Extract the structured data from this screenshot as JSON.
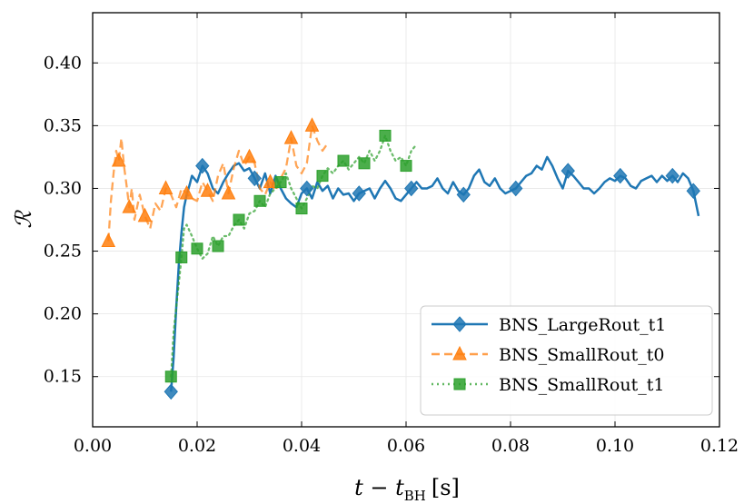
{
  "chart_data": {
    "type": "line",
    "xlabel": "t − t_BH [s]",
    "xlabel_main": "t − t",
    "xlabel_sub": "BH",
    "xlabel_unit": "[s]",
    "ylabel": "ℛ",
    "xlim": [
      0.0,
      0.12
    ],
    "ylim": [
      0.11,
      0.44
    ],
    "xticks": [
      0.0,
      0.02,
      0.04,
      0.06,
      0.08,
      0.1,
      0.12
    ],
    "xtick_labels": [
      "0.00",
      "0.02",
      "0.04",
      "0.06",
      "0.08",
      "0.10",
      "0.12"
    ],
    "yticks": [
      0.15,
      0.2,
      0.25,
      0.3,
      0.35,
      0.4
    ],
    "ytick_labels": [
      "0.15",
      "0.20",
      "0.25",
      "0.30",
      "0.35",
      "0.40"
    ],
    "grid": true,
    "legend_position": "bottom-right",
    "series": [
      {
        "name": "BNS_LargeRout_t1",
        "color": "#1f77b4",
        "linestyle": "solid",
        "marker": "diamond",
        "x": [
          0.015,
          0.0155,
          0.016,
          0.0165,
          0.017,
          0.0175,
          0.018,
          0.0185,
          0.019,
          0.02,
          0.021,
          0.022,
          0.023,
          0.024,
          0.025,
          0.026,
          0.027,
          0.028,
          0.029,
          0.03,
          0.031,
          0.032,
          0.033,
          0.034,
          0.035,
          0.036,
          0.037,
          0.038,
          0.039,
          0.04,
          0.041,
          0.042,
          0.043,
          0.044,
          0.045,
          0.046,
          0.047,
          0.048,
          0.049,
          0.05,
          0.051,
          0.052,
          0.053,
          0.054,
          0.055,
          0.056,
          0.057,
          0.058,
          0.059,
          0.06,
          0.061,
          0.062,
          0.063,
          0.064,
          0.065,
          0.066,
          0.067,
          0.068,
          0.069,
          0.07,
          0.071,
          0.072,
          0.073,
          0.074,
          0.075,
          0.076,
          0.077,
          0.078,
          0.079,
          0.08,
          0.081,
          0.082,
          0.083,
          0.084,
          0.085,
          0.086,
          0.087,
          0.088,
          0.089,
          0.09,
          0.091,
          0.092,
          0.093,
          0.094,
          0.095,
          0.096,
          0.097,
          0.098,
          0.099,
          0.1,
          0.101,
          0.102,
          0.103,
          0.104,
          0.105,
          0.106,
          0.107,
          0.108,
          0.109,
          0.11,
          0.111,
          0.112,
          0.113,
          0.114,
          0.115,
          0.116
        ],
        "y": [
          0.138,
          0.165,
          0.205,
          0.24,
          0.265,
          0.285,
          0.295,
          0.302,
          0.31,
          0.305,
          0.318,
          0.312,
          0.3,
          0.296,
          0.305,
          0.312,
          0.318,
          0.32,
          0.314,
          0.316,
          0.308,
          0.3,
          0.312,
          0.296,
          0.31,
          0.3,
          0.292,
          0.288,
          0.285,
          0.296,
          0.3,
          0.292,
          0.305,
          0.298,
          0.302,
          0.292,
          0.3,
          0.295,
          0.296,
          0.29,
          0.296,
          0.298,
          0.3,
          0.292,
          0.3,
          0.306,
          0.3,
          0.292,
          0.29,
          0.295,
          0.3,
          0.305,
          0.3,
          0.3,
          0.302,
          0.308,
          0.3,
          0.296,
          0.305,
          0.298,
          0.295,
          0.3,
          0.31,
          0.315,
          0.305,
          0.302,
          0.308,
          0.3,
          0.296,
          0.298,
          0.3,
          0.305,
          0.31,
          0.312,
          0.318,
          0.315,
          0.325,
          0.318,
          0.308,
          0.3,
          0.314,
          0.31,
          0.305,
          0.3,
          0.3,
          0.296,
          0.3,
          0.305,
          0.308,
          0.306,
          0.31,
          0.308,
          0.302,
          0.3,
          0.306,
          0.308,
          0.31,
          0.305,
          0.31,
          0.306,
          0.31,
          0.305,
          0.312,
          0.308,
          0.298,
          0.278
        ]
      },
      {
        "name": "BNS_SmallRout_t0",
        "color": "#ff7f0e",
        "linestyle": "dashed",
        "marker": "triangle",
        "x": [
          0.003,
          0.0035,
          0.004,
          0.0045,
          0.005,
          0.0055,
          0.006,
          0.0065,
          0.007,
          0.0075,
          0.008,
          0.009,
          0.01,
          0.011,
          0.012,
          0.013,
          0.014,
          0.015,
          0.016,
          0.017,
          0.018,
          0.019,
          0.02,
          0.021,
          0.022,
          0.023,
          0.024,
          0.025,
          0.026,
          0.027,
          0.028,
          0.029,
          0.03,
          0.031,
          0.032,
          0.033,
          0.034,
          0.035,
          0.036,
          0.037,
          0.038,
          0.039,
          0.04,
          0.041,
          0.042,
          0.043,
          0.044,
          0.045
        ],
        "y": [
          0.258,
          0.29,
          0.312,
          0.33,
          0.322,
          0.34,
          0.318,
          0.302,
          0.285,
          0.3,
          0.275,
          0.295,
          0.278,
          0.268,
          0.288,
          0.282,
          0.3,
          0.295,
          0.285,
          0.3,
          0.296,
          0.292,
          0.29,
          0.305,
          0.298,
          0.29,
          0.31,
          0.32,
          0.296,
          0.316,
          0.33,
          0.318,
          0.325,
          0.32,
          0.3,
          0.295,
          0.305,
          0.298,
          0.308,
          0.316,
          0.34,
          0.318,
          0.312,
          0.32,
          0.35,
          0.338,
          0.33,
          0.336
        ]
      },
      {
        "name": "BNS_SmallRout_t1",
        "color": "#2ca02c",
        "linestyle": "dotted",
        "marker": "square",
        "x": [
          0.015,
          0.0155,
          0.016,
          0.0165,
          0.017,
          0.0175,
          0.018,
          0.019,
          0.02,
          0.021,
          0.022,
          0.023,
          0.024,
          0.025,
          0.026,
          0.027,
          0.028,
          0.029,
          0.03,
          0.031,
          0.032,
          0.033,
          0.034,
          0.035,
          0.036,
          0.037,
          0.038,
          0.039,
          0.04,
          0.041,
          0.042,
          0.043,
          0.044,
          0.045,
          0.046,
          0.047,
          0.048,
          0.049,
          0.05,
          0.051,
          0.052,
          0.053,
          0.054,
          0.055,
          0.056,
          0.057,
          0.058,
          0.059,
          0.06,
          0.061,
          0.062
        ],
        "y": [
          0.15,
          0.185,
          0.205,
          0.225,
          0.245,
          0.268,
          0.271,
          0.262,
          0.252,
          0.244,
          0.248,
          0.262,
          0.254,
          0.262,
          0.262,
          0.27,
          0.275,
          0.268,
          0.28,
          0.282,
          0.29,
          0.285,
          0.296,
          0.3,
          0.305,
          0.312,
          0.3,
          0.292,
          0.284,
          0.292,
          0.302,
          0.3,
          0.31,
          0.316,
          0.312,
          0.318,
          0.322,
          0.315,
          0.32,
          0.325,
          0.32,
          0.33,
          0.322,
          0.33,
          0.342,
          0.33,
          0.322,
          0.325,
          0.318,
          0.33,
          0.335
        ]
      }
    ]
  }
}
